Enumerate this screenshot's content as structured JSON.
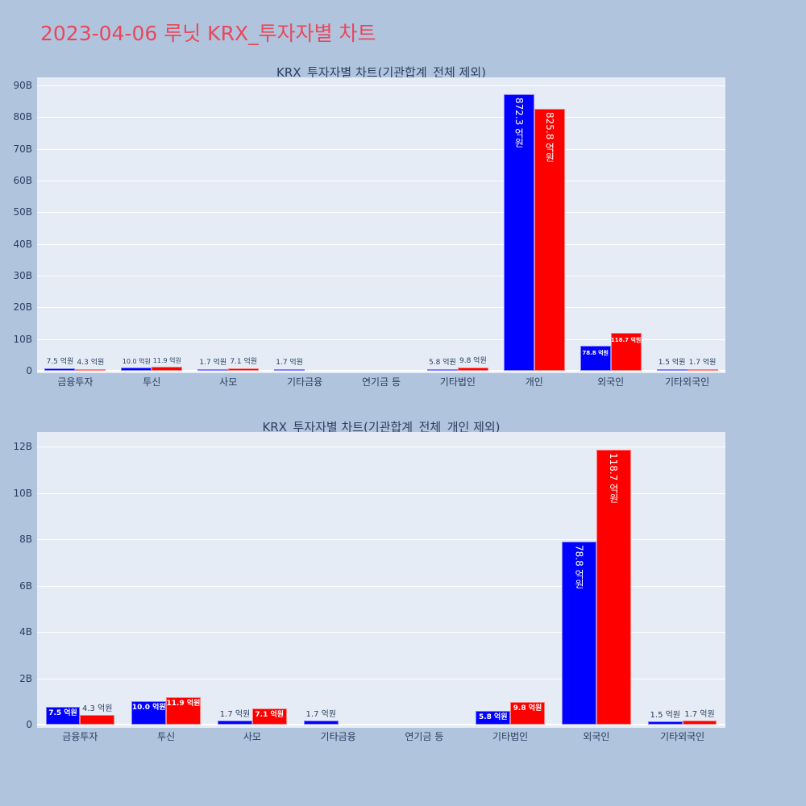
{
  "page": {
    "title": "2023-04-06 루닛 KRX_투자자별 차트",
    "title_color": "#e8485c",
    "background": "#b0c4de"
  },
  "colors": {
    "series_blue": "#0000ff",
    "series_red": "#ff0000",
    "plot_bg": "#e5ecf6"
  },
  "chart_data": [
    {
      "type": "bar",
      "title": "KRX_투자자별 차트(기관합계_전체 제외)",
      "xlabel": "",
      "ylabel": "",
      "ylim": [
        0,
        92000000000
      ],
      "yticks": [
        "0",
        "10B",
        "20B",
        "30B",
        "40B",
        "50B",
        "60B",
        "70B",
        "80B",
        "90B"
      ],
      "grid": true,
      "legend": null,
      "categories": [
        "금융투자",
        "투신",
        "사모",
        "기타금융",
        "연기금 등",
        "기타법인",
        "개인",
        "외국인",
        "기타외국인"
      ],
      "series": [
        {
          "name": "blue",
          "color": "#0000ff",
          "values_eok": [
            7.5,
            10.0,
            1.7,
            1.7,
            null,
            5.8,
            872.3,
            78.8,
            1.5
          ],
          "labels": [
            "7.5 억원",
            "10.0 억원",
            "1.7 억원",
            "1.7 억원",
            "",
            "5.8 억원",
            "872.3 억원",
            "78.8 억원",
            "1.5 억원"
          ]
        },
        {
          "name": "red",
          "color": "#ff0000",
          "values_eok": [
            4.3,
            11.9,
            7.1,
            null,
            null,
            9.8,
            825.8,
            118.7,
            1.7
          ],
          "labels": [
            "4.3 억원",
            "11.9 억원",
            "7.1 억원",
            "",
            "",
            "9.8 억원",
            "825.8 억원",
            "118.7 억원",
            "1.7 억원"
          ]
        }
      ]
    },
    {
      "type": "bar",
      "title": "KRX_투자자별 차트(기관합계_전체_개인 제외)",
      "xlabel": "",
      "ylabel": "",
      "ylim": [
        0,
        12600000000
      ],
      "yticks": [
        "0",
        "2B",
        "4B",
        "6B",
        "8B",
        "10B",
        "12B"
      ],
      "grid": true,
      "legend": null,
      "categories": [
        "금융투자",
        "투신",
        "사모",
        "기타금융",
        "연기금 등",
        "기타법인",
        "외국인",
        "기타외국인"
      ],
      "series": [
        {
          "name": "blue",
          "color": "#0000ff",
          "values_eok": [
            7.5,
            10.0,
            1.7,
            1.7,
            null,
            5.8,
            78.8,
            1.5
          ],
          "labels": [
            "7.5 억원",
            "10.0 억원",
            "1.7 억원",
            "1.7 억원",
            "",
            "5.8 억원",
            "78.8 억원",
            "1.5 억원"
          ]
        },
        {
          "name": "red",
          "color": "#ff0000",
          "values_eok": [
            4.3,
            11.9,
            7.1,
            null,
            null,
            9.8,
            118.7,
            1.7
          ],
          "labels": [
            "4.3 억원",
            "11.9 억원",
            "7.1 억원",
            "",
            "",
            "9.8 억원",
            "118.7 억원",
            "1.7 억원"
          ]
        }
      ]
    }
  ]
}
